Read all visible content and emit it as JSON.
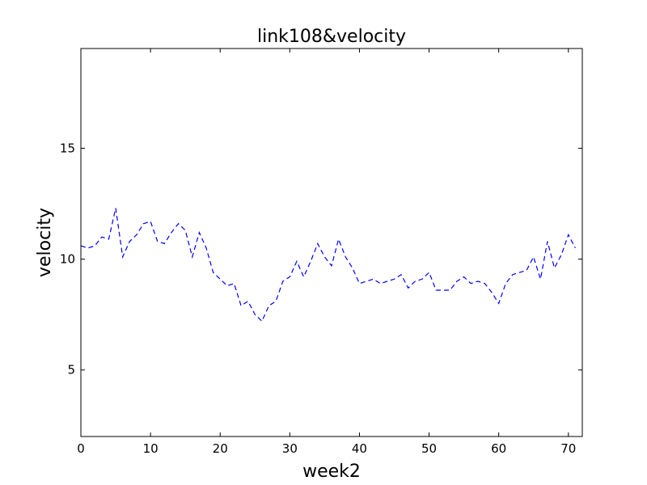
{
  "chart_data": {
    "type": "line",
    "title": "link108&velocity",
    "xlabel": "week2",
    "ylabel": "velocity",
    "xlim": [
      0,
      72
    ],
    "ylim": [
      2,
      19.5
    ],
    "xticks": [
      0,
      10,
      20,
      30,
      40,
      50,
      60,
      70
    ],
    "yticks": [
      5,
      10,
      15
    ],
    "grid": false,
    "series": [
      {
        "line_style": "dashed",
        "color": "#0000ff",
        "x": [
          0,
          1,
          2,
          3,
          4,
          5,
          6,
          7,
          8,
          9,
          10,
          11,
          12,
          13,
          14,
          15,
          16,
          17,
          18,
          19,
          20,
          21,
          22,
          23,
          24,
          25,
          26,
          27,
          28,
          29,
          30,
          31,
          32,
          33,
          34,
          35,
          36,
          37,
          38,
          39,
          40,
          41,
          42,
          43,
          44,
          45,
          46,
          47,
          48,
          49,
          50,
          51,
          52,
          53,
          54,
          55,
          56,
          57,
          58,
          59,
          60,
          61,
          62,
          63,
          64,
          65,
          66,
          67,
          68,
          69,
          70,
          71
        ],
        "y": [
          10.6,
          10.5,
          10.6,
          11.0,
          10.9,
          12.3,
          10.1,
          10.8,
          11.1,
          11.6,
          11.7,
          10.8,
          10.7,
          11.2,
          11.6,
          11.3,
          10.1,
          11.2,
          10.5,
          9.4,
          9.1,
          8.8,
          8.9,
          7.9,
          8.1,
          7.5,
          7.2,
          7.9,
          8.1,
          9.0,
          9.2,
          9.9,
          9.2,
          9.9,
          10.7,
          10.1,
          9.7,
          10.9,
          10.1,
          9.6,
          8.9,
          9.0,
          9.1,
          8.9,
          9.0,
          9.1,
          9.3,
          8.7,
          9.0,
          9.1,
          9.4,
          8.6,
          8.6,
          8.6,
          9.0,
          9.2,
          8.9,
          9.0,
          8.9,
          8.5,
          8.0,
          8.9,
          9.3,
          9.4,
          9.5,
          10.1,
          9.1,
          10.8,
          9.6,
          10.2,
          11.1,
          10.5
        ]
      }
    ]
  }
}
